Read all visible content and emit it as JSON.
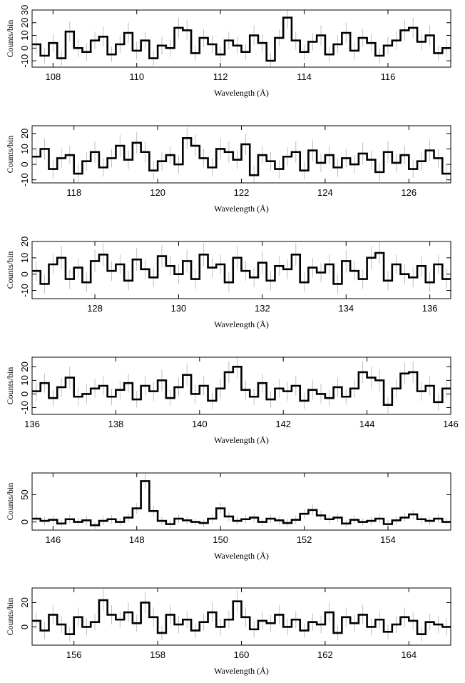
{
  "chart_data": [
    {
      "type": "step",
      "xlabel": "Wavelength (Å)",
      "ylabel": "Counts/bin",
      "color": "#000000",
      "error_color": "#b0b0b0",
      "xlim": [
        107.5,
        117.5
      ],
      "ylim": [
        -15,
        30
      ],
      "xticks": [
        108,
        110,
        112,
        114,
        116
      ],
      "yticks": [
        -10,
        0,
        10,
        20,
        30
      ],
      "x": [
        107.6,
        107.8,
        108.0,
        108.2,
        108.4,
        108.6,
        108.8,
        109.0,
        109.2,
        109.4,
        109.6,
        109.8,
        110.0,
        110.2,
        110.4,
        110.6,
        110.8,
        111.0,
        111.2,
        111.4,
        111.6,
        111.8,
        112.0,
        112.2,
        112.4,
        112.6,
        112.8,
        113.0,
        113.2,
        113.4,
        113.6,
        113.8,
        114.0,
        114.2,
        114.4,
        114.6,
        114.8,
        115.0,
        115.2,
        115.4,
        115.6,
        115.8,
        116.0,
        116.2,
        116.4,
        116.6,
        116.8,
        117.0,
        117.2,
        117.4
      ],
      "values": [
        3,
        -6,
        4,
        -8,
        13,
        0,
        -3,
        6,
        9,
        -5,
        3,
        12,
        -2,
        6,
        -8,
        2,
        0,
        16,
        14,
        -4,
        8,
        3,
        -5,
        6,
        2,
        -3,
        10,
        4,
        -10,
        8,
        24,
        6,
        -3,
        5,
        10,
        -5,
        3,
        12,
        -2,
        8,
        4,
        -6,
        2,
        6,
        14,
        16,
        5,
        10,
        -4,
        0
      ],
      "errors": [
        7,
        6,
        7,
        6,
        8,
        7,
        7,
        7,
        8,
        6,
        7,
        8,
        7,
        7,
        6,
        7,
        7,
        8,
        8,
        6,
        7,
        7,
        6,
        7,
        7,
        6,
        8,
        7,
        6,
        7,
        9,
        7,
        6,
        7,
        8,
        6,
        7,
        8,
        7,
        7,
        7,
        6,
        7,
        7,
        8,
        8,
        7,
        8,
        6,
        7
      ]
    },
    {
      "type": "step",
      "xlabel": "Wavelength (Å)",
      "ylabel": "Counts/bin",
      "color": "#000000",
      "error_color": "#b0b0b0",
      "xlim": [
        117,
        127
      ],
      "ylim": [
        -12,
        25
      ],
      "xticks": [
        118,
        120,
        122,
        124,
        126
      ],
      "yticks": [
        -10,
        0,
        10,
        20
      ],
      "x": [
        117.1,
        117.3,
        117.5,
        117.7,
        117.9,
        118.1,
        118.3,
        118.5,
        118.7,
        118.9,
        119.1,
        119.3,
        119.5,
        119.7,
        119.9,
        120.1,
        120.3,
        120.5,
        120.7,
        120.9,
        121.1,
        121.3,
        121.5,
        121.7,
        121.9,
        122.1,
        122.3,
        122.5,
        122.7,
        122.9,
        123.1,
        123.3,
        123.5,
        123.7,
        123.9,
        124.1,
        124.3,
        124.5,
        124.7,
        124.9,
        125.1,
        125.3,
        125.5,
        125.7,
        125.9,
        126.1,
        126.3,
        126.5,
        126.7,
        126.9
      ],
      "values": [
        5,
        10,
        -3,
        4,
        6,
        -6,
        2,
        8,
        -2,
        4,
        12,
        3,
        14,
        8,
        -4,
        2,
        6,
        0,
        17,
        12,
        4,
        -2,
        10,
        8,
        3,
        13,
        -7,
        6,
        2,
        -3,
        5,
        8,
        -4,
        9,
        1,
        6,
        -2,
        4,
        0,
        7,
        3,
        -5,
        8,
        1,
        6,
        -3,
        2,
        9,
        4,
        -6
      ],
      "errors": [
        6,
        7,
        6,
        6,
        6,
        6,
        6,
        7,
        6,
        6,
        7,
        6,
        7,
        7,
        6,
        6,
        6,
        6,
        7,
        7,
        6,
        6,
        7,
        7,
        6,
        7,
        6,
        6,
        6,
        6,
        6,
        7,
        6,
        7,
        6,
        6,
        6,
        6,
        6,
        7,
        6,
        6,
        7,
        6,
        6,
        6,
        6,
        7,
        6,
        6
      ]
    },
    {
      "type": "step",
      "xlabel": "Wavelength (Å)",
      "ylabel": "Counts/bin",
      "color": "#000000",
      "error_color": "#b0b0b0",
      "xlim": [
        126.5,
        136.5
      ],
      "ylim": [
        -15,
        20
      ],
      "xticks": [
        128,
        130,
        132,
        134,
        136
      ],
      "yticks": [
        -10,
        0,
        10,
        20
      ],
      "x": [
        126.6,
        126.8,
        127.0,
        127.2,
        127.4,
        127.6,
        127.8,
        128.0,
        128.2,
        128.4,
        128.6,
        128.8,
        129.0,
        129.2,
        129.4,
        129.6,
        129.8,
        130.0,
        130.2,
        130.4,
        130.6,
        130.8,
        131.0,
        131.2,
        131.4,
        131.6,
        131.8,
        132.0,
        132.2,
        132.4,
        132.6,
        132.8,
        133.0,
        133.2,
        133.4,
        133.6,
        133.8,
        134.0,
        134.2,
        134.4,
        134.6,
        134.8,
        135.0,
        135.2,
        135.4,
        135.6,
        135.8,
        136.0,
        136.2,
        136.4
      ],
      "values": [
        2,
        -6,
        6,
        10,
        -3,
        4,
        -5,
        8,
        12,
        2,
        6,
        -4,
        9,
        3,
        -2,
        11,
        5,
        0,
        8,
        -3,
        12,
        4,
        6,
        -5,
        10,
        2,
        -2,
        7,
        -4,
        5,
        3,
        12,
        -5,
        4,
        1,
        6,
        -6,
        8,
        2,
        -3,
        10,
        13,
        -4,
        6,
        0,
        -2,
        5,
        -5,
        6,
        -3
      ],
      "errors": [
        6,
        6,
        6,
        7,
        6,
        6,
        6,
        7,
        7,
        6,
        6,
        6,
        7,
        6,
        6,
        7,
        6,
        6,
        7,
        6,
        7,
        6,
        6,
        6,
        7,
        6,
        6,
        7,
        6,
        6,
        6,
        7,
        6,
        6,
        6,
        6,
        6,
        7,
        6,
        6,
        7,
        7,
        6,
        6,
        6,
        6,
        6,
        6,
        6,
        6
      ]
    },
    {
      "type": "step",
      "xlabel": "Wavelength (Å)",
      "ylabel": "Counts/bin",
      "color": "#000000",
      "error_color": "#b0b0b0",
      "xlim": [
        136,
        146
      ],
      "ylim": [
        -15,
        27
      ],
      "xticks": [
        136,
        138,
        140,
        142,
        144,
        146
      ],
      "yticks": [
        -10,
        0,
        10,
        20
      ],
      "x": [
        136.1,
        136.3,
        136.5,
        136.7,
        136.9,
        137.1,
        137.3,
        137.5,
        137.7,
        137.9,
        138.1,
        138.3,
        138.5,
        138.7,
        138.9,
        139.1,
        139.3,
        139.5,
        139.7,
        139.9,
        140.1,
        140.3,
        140.5,
        140.7,
        140.9,
        141.1,
        141.3,
        141.5,
        141.7,
        141.9,
        142.1,
        142.3,
        142.5,
        142.7,
        142.9,
        143.1,
        143.3,
        143.5,
        143.7,
        143.9,
        144.1,
        144.3,
        144.5,
        144.7,
        144.9,
        145.1,
        145.3,
        145.5,
        145.7,
        145.9
      ],
      "values": [
        2,
        8,
        -3,
        5,
        12,
        -2,
        0,
        4,
        6,
        -2,
        3,
        8,
        -4,
        6,
        2,
        10,
        -3,
        5,
        14,
        0,
        6,
        -5,
        4,
        16,
        20,
        3,
        -2,
        8,
        -4,
        4,
        2,
        6,
        -5,
        3,
        0,
        -3,
        5,
        -2,
        4,
        16,
        12,
        10,
        -8,
        4,
        15,
        16,
        2,
        6,
        -6,
        4
      ],
      "errors": [
        7,
        7,
        6,
        7,
        8,
        7,
        7,
        7,
        7,
        6,
        7,
        7,
        6,
        7,
        7,
        8,
        6,
        7,
        8,
        7,
        7,
        6,
        7,
        8,
        8,
        7,
        6,
        7,
        6,
        7,
        7,
        7,
        6,
        7,
        7,
        6,
        7,
        6,
        7,
        8,
        8,
        8,
        6,
        7,
        8,
        8,
        7,
        7,
        6,
        7
      ]
    },
    {
      "type": "step",
      "xlabel": "Wavelength (Å)",
      "ylabel": "Counts/bin",
      "color": "#000000",
      "error_color": "#b0b0b0",
      "xlim": [
        145.5,
        155.5
      ],
      "ylim": [
        -15,
        90
      ],
      "xticks": [
        146,
        148,
        150,
        152,
        154
      ],
      "yticks": [
        0,
        50
      ],
      "x": [
        145.6,
        145.8,
        146.0,
        146.2,
        146.4,
        146.6,
        146.8,
        147.0,
        147.2,
        147.4,
        147.6,
        147.8,
        148.0,
        148.2,
        148.4,
        148.6,
        148.8,
        149.0,
        149.2,
        149.4,
        149.6,
        149.8,
        150.0,
        150.2,
        150.4,
        150.6,
        150.8,
        151.0,
        151.2,
        151.4,
        151.6,
        151.8,
        152.0,
        152.2,
        152.4,
        152.6,
        152.8,
        153.0,
        153.2,
        153.4,
        153.6,
        153.8,
        154.0,
        154.2,
        154.4,
        154.6,
        154.8,
        155.0,
        155.2,
        155.4
      ],
      "values": [
        6,
        2,
        4,
        -3,
        5,
        0,
        3,
        -6,
        2,
        5,
        0,
        8,
        25,
        75,
        20,
        2,
        -4,
        6,
        3,
        0,
        -2,
        6,
        25,
        10,
        2,
        5,
        8,
        0,
        6,
        3,
        -2,
        4,
        15,
        22,
        12,
        5,
        8,
        -3,
        4,
        0,
        2,
        6,
        -4,
        3,
        8,
        14,
        5,
        2,
        6,
        0
      ],
      "errors": [
        8,
        8,
        8,
        7,
        8,
        7,
        8,
        7,
        8,
        8,
        7,
        8,
        10,
        14,
        10,
        8,
        7,
        8,
        8,
        7,
        7,
        8,
        10,
        9,
        8,
        8,
        8,
        7,
        8,
        8,
        7,
        8,
        9,
        10,
        9,
        8,
        8,
        7,
        8,
        7,
        8,
        8,
        7,
        8,
        8,
        9,
        8,
        8,
        8,
        7
      ]
    },
    {
      "type": "step",
      "xlabel": "Wavelength (Å)",
      "ylabel": "Counts/bin",
      "color": "#000000",
      "error_color": "#b0b0b0",
      "xlim": [
        155,
        165
      ],
      "ylim": [
        -15,
        32
      ],
      "xticks": [
        156,
        158,
        160,
        162,
        164
      ],
      "yticks": [
        0,
        20
      ],
      "x": [
        155.1,
        155.3,
        155.5,
        155.7,
        155.9,
        156.1,
        156.3,
        156.5,
        156.7,
        156.9,
        157.1,
        157.3,
        157.5,
        157.7,
        157.9,
        158.1,
        158.3,
        158.5,
        158.7,
        158.9,
        159.1,
        159.3,
        159.5,
        159.7,
        159.9,
        160.1,
        160.3,
        160.5,
        160.7,
        160.9,
        161.1,
        161.3,
        161.5,
        161.7,
        161.9,
        162.1,
        162.3,
        162.5,
        162.7,
        162.9,
        163.1,
        163.3,
        163.5,
        163.7,
        163.9,
        164.1,
        164.3,
        164.5,
        164.7,
        164.9
      ],
      "values": [
        5,
        -3,
        10,
        2,
        -6,
        8,
        0,
        4,
        22,
        10,
        6,
        12,
        3,
        20,
        8,
        -5,
        10,
        2,
        6,
        -3,
        4,
        12,
        0,
        6,
        21,
        8,
        -2,
        5,
        3,
        10,
        0,
        6,
        -3,
        4,
        2,
        12,
        -5,
        8,
        3,
        10,
        0,
        6,
        -4,
        2,
        8,
        5,
        -6,
        4,
        2,
        0
      ],
      "errors": [
        7,
        7,
        8,
        7,
        6,
        8,
        7,
        7,
        9,
        8,
        7,
        8,
        7,
        9,
        8,
        6,
        8,
        7,
        7,
        6,
        7,
        8,
        7,
        7,
        9,
        8,
        7,
        7,
        7,
        8,
        7,
        7,
        6,
        7,
        7,
        8,
        6,
        8,
        7,
        8,
        7,
        7,
        6,
        7,
        8,
        7,
        6,
        7,
        7,
        7
      ]
    }
  ]
}
